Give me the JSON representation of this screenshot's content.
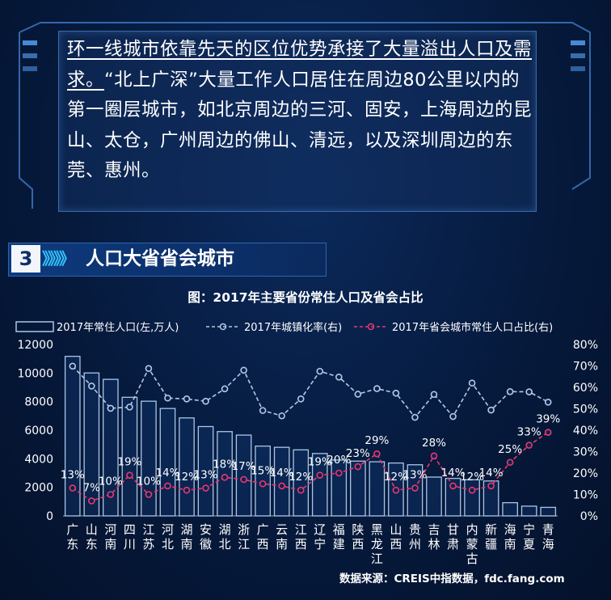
{
  "quote": {
    "highlight": "环一线城市依靠先天的区位优势承接了大量溢出人口及需求。",
    "body": "“北上广深”大量工作人口居住在周边80公里以内的第一圈层城市，如北京周边的三河、固安，上海周边的昆山、太仓，广州周边的佛山、清远，以及深圳周边的东莞、惠州。"
  },
  "section": {
    "number": "3",
    "arrows": "》》》》",
    "title": "人口大省省会城市"
  },
  "chart_data": {
    "type": "bar",
    "title": "图：2017年主要省份常住人口及省会占比",
    "categories": [
      "广东",
      "山东",
      "河南",
      "四川",
      "江苏",
      "河北",
      "湖南",
      "安徽",
      "湖北",
      "浙江",
      "广西",
      "云南",
      "江西",
      "辽宁",
      "福建",
      "陕西",
      "黑龙江",
      "山西",
      "贵州",
      "吉林",
      "甘肃",
      "内蒙古",
      "新疆",
      "海南",
      "宁夏",
      "青海"
    ],
    "series": [
      {
        "name": "2017年常住人口(左,万人)",
        "type": "bar",
        "axis": "left",
        "values": [
          11169,
          10006,
          9559,
          8302,
          8029,
          7520,
          6860,
          6255,
          5902,
          5657,
          4885,
          4801,
          4622,
          4369,
          3911,
          3835,
          3789,
          3702,
          3580,
          2717,
          2626,
          2529,
          2445,
          926,
          682,
          598
        ]
      },
      {
        "name": "2017年城镇化率(右)",
        "type": "line",
        "axis": "right",
        "values": [
          69.9,
          60.6,
          50.2,
          50.8,
          68.8,
          55.0,
          54.6,
          53.5,
          59.3,
          68.0,
          49.2,
          46.7,
          54.6,
          67.5,
          64.8,
          56.8,
          59.4,
          57.3,
          46.0,
          56.7,
          46.4,
          62.0,
          49.4,
          58.0,
          57.9,
          53.1
        ]
      },
      {
        "name": "2017年省会城市常住人口占比(右)",
        "type": "line",
        "axis": "right",
        "values": [
          13,
          7,
          10,
          19,
          10,
          14,
          12,
          13,
          18,
          17,
          15,
          14,
          12,
          19,
          20,
          23,
          29,
          12,
          13,
          28,
          14,
          12,
          14,
          25,
          33,
          39
        ],
        "labels": [
          "13%",
          "7%",
          "10%",
          "19%",
          "10%",
          "14%",
          "12%",
          "13%",
          "18%",
          "17%",
          "15%",
          "14%",
          "12%",
          "19%",
          "20%",
          "23%",
          "29%",
          "12%",
          "13%",
          "28%",
          "14%",
          "12%",
          "14%",
          "25%",
          "33%",
          "39%"
        ]
      }
    ],
    "left_axis": {
      "ylim": [
        0,
        12000
      ],
      "ticks": [
        "0",
        "2000",
        "4000",
        "6000",
        "8000",
        "10000",
        "12000"
      ]
    },
    "right_axis": {
      "ylim": [
        0,
        80
      ],
      "ticks": [
        "0%",
        "10%",
        "20%",
        "30%",
        "40%",
        "50%",
        "60%",
        "70%",
        "80%"
      ]
    },
    "legend_placement": "top",
    "grid": false
  },
  "colors": {
    "bar_stroke": "#a9c6e8",
    "urban_line": "#b5c9e4",
    "capital_line": "#e8386f",
    "text": "#ffffff"
  },
  "source": "数据来源：CREIS中指数据，fdc.fang.com"
}
